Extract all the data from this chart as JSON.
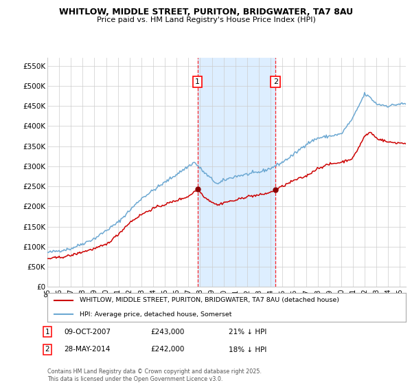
{
  "title": "WHITLOW, MIDDLE STREET, PURITON, BRIDGWATER, TA7 8AU",
  "subtitle": "Price paid vs. HM Land Registry's House Price Index (HPI)",
  "ylim": [
    0,
    570000
  ],
  "yticks": [
    0,
    50000,
    100000,
    150000,
    200000,
    250000,
    300000,
    350000,
    400000,
    450000,
    500000,
    550000
  ],
  "ytick_labels": [
    "£0",
    "£50K",
    "£100K",
    "£150K",
    "£200K",
    "£250K",
    "£300K",
    "£350K",
    "£400K",
    "£450K",
    "£500K",
    "£550K"
  ],
  "hpi_color": "#6ca8d2",
  "price_color": "#cc0000",
  "marker_color": "#8b0000",
  "grid_color": "#cccccc",
  "bg_color": "#ffffff",
  "highlight_color": "#ddeeff",
  "sale1_date": 2007.77,
  "sale1_price": 243000,
  "sale1_label": "1",
  "sale2_date": 2014.41,
  "sale2_price": 242000,
  "sale2_label": "2",
  "legend_price_label": "WHITLOW, MIDDLE STREET, PURITON, BRIDGWATER, TA7 8AU (detached house)",
  "legend_hpi_label": "HPI: Average price, detached house, Somerset",
  "copyright": "Contains HM Land Registry data © Crown copyright and database right 2025.\nThis data is licensed under the Open Government Licence v3.0.",
  "x_start": 1995,
  "x_end": 2025.5,
  "xtick_years": [
    1995,
    1996,
    1997,
    1998,
    1999,
    2000,
    2001,
    2002,
    2003,
    2004,
    2005,
    2006,
    2007,
    2008,
    2009,
    2010,
    2011,
    2012,
    2013,
    2014,
    2015,
    2016,
    2017,
    2018,
    2019,
    2020,
    2021,
    2022,
    2023,
    2024,
    2025
  ]
}
